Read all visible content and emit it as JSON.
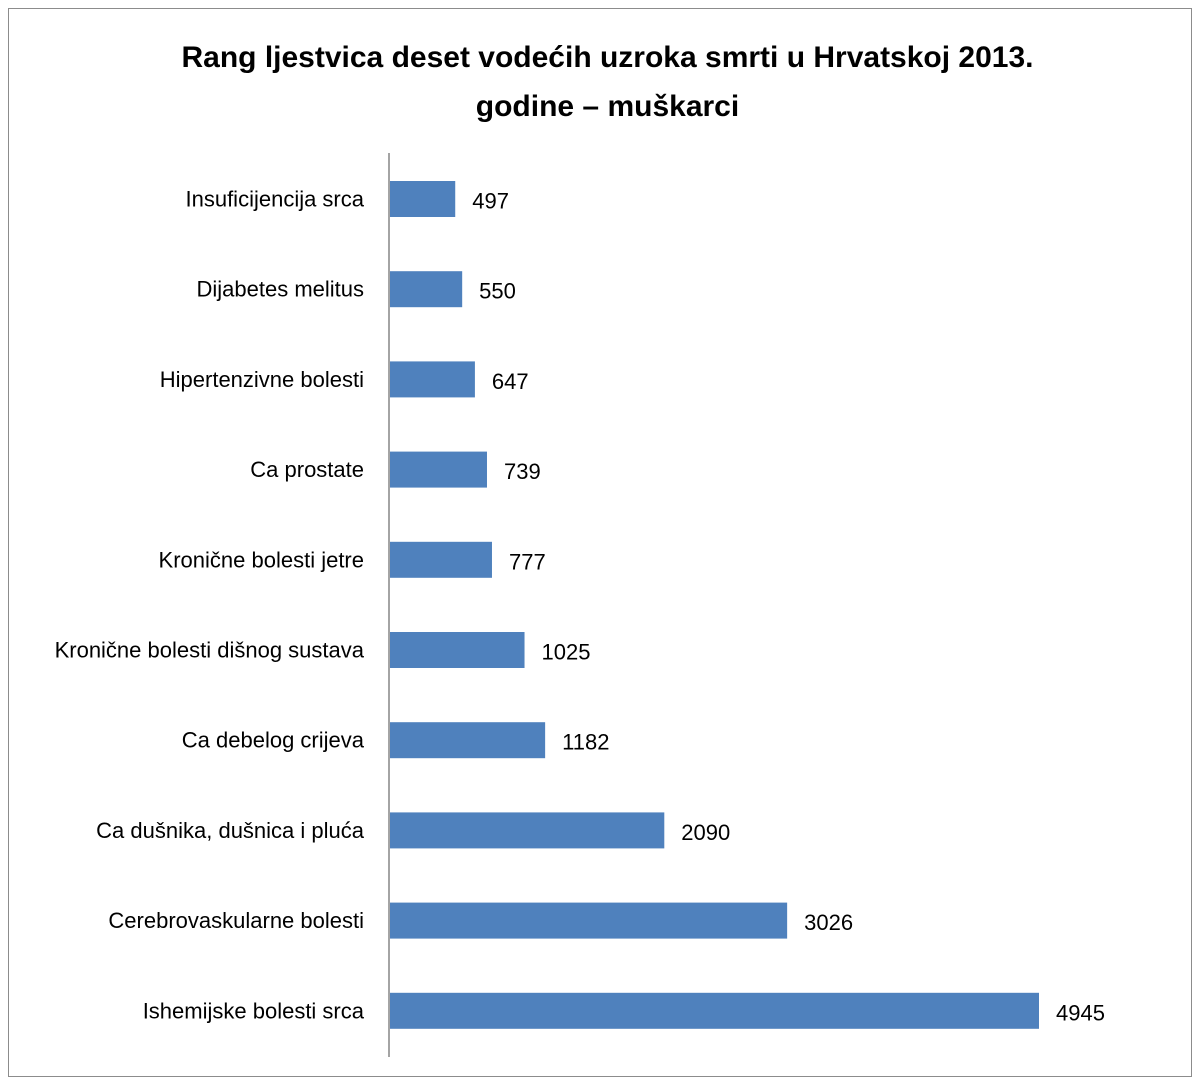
{
  "chart_data": {
    "type": "bar",
    "orientation": "horizontal",
    "title": "Rang ljestvica deset vodećih uzroka smrti u Hrvatskoj 2013. godine – muškarci",
    "title_lines": [
      "Rang ljestvica deset vodećih uzroka smrti u Hrvatskoj 2013.",
      "godine – muškarci"
    ],
    "xlabel": "",
    "ylabel": "",
    "categories": [
      "Insuficijencija srca",
      "Dijabetes melitus",
      "Hipertenzivne bolesti",
      "Ca prostate",
      "Kronične bolesti jetre",
      "Kronične bolesti dišnog sustava",
      "Ca debelog crijeva",
      "Ca dušnika, dušnica i pluća",
      "Cerebrovaskularne bolesti",
      "Ishemijske bolesti srca"
    ],
    "values": [
      497,
      550,
      647,
      739,
      777,
      1025,
      1182,
      2090,
      3026,
      4945
    ],
    "data_labels": [
      "497",
      "550",
      "647",
      "739",
      "777",
      "1025",
      "1182",
      "2090",
      "3026",
      "4945"
    ],
    "xlim": [
      0,
      5000
    ],
    "grid": false,
    "legend": "none",
    "bar_color": "#4f81bd",
    "axis_color": "#868686"
  }
}
